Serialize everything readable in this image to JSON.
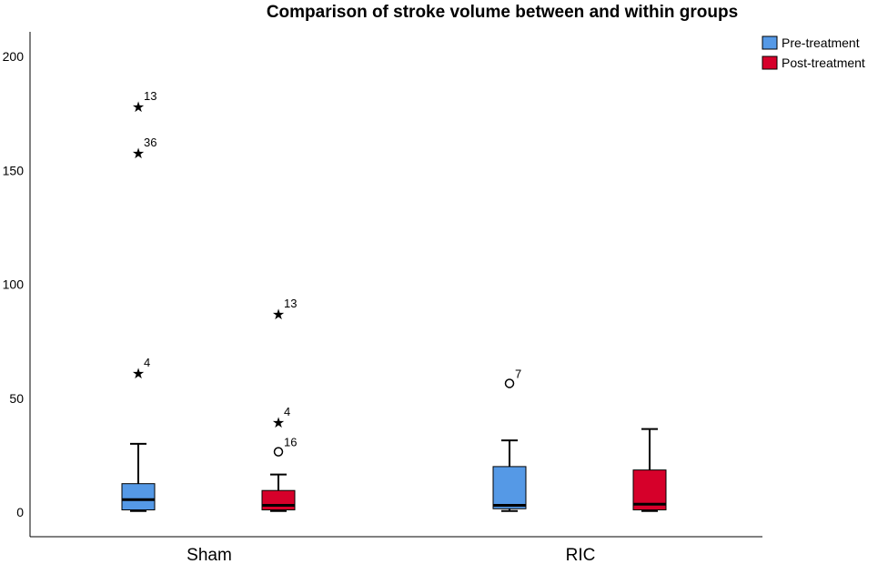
{
  "chart_data": {
    "type": "boxplot",
    "title": "Comparison of stroke volume between and within groups",
    "xlabel": "",
    "ylabel": "",
    "ylim": [
      -10,
      212
    ],
    "yticks": [
      0,
      50,
      100,
      150,
      200
    ],
    "categories": [
      "Sham",
      "RIC"
    ],
    "legend": {
      "position": "top-right"
    },
    "grid": false,
    "series": [
      {
        "name": "Pre-treatment",
        "color": "#5599E6",
        "boxes": [
          {
            "category": "Sham",
            "min": 0.5,
            "q1": 1.0,
            "median": 5.5,
            "q3": 12.5,
            "max": 30,
            "outliers": [
              {
                "value": 178.5,
                "label": "13",
                "marker": "star"
              },
              {
                "value": 158,
                "label": "36",
                "marker": "star"
              },
              {
                "value": 61.5,
                "label": "4",
                "marker": "star"
              }
            ]
          },
          {
            "category": "RIC",
            "min": 0.5,
            "q1": 1.5,
            "median": 3.0,
            "q3": 20,
            "max": 31.5,
            "outliers": [
              {
                "value": 56.5,
                "label": "7",
                "marker": "circle"
              }
            ]
          }
        ]
      },
      {
        "name": "Post-treatment",
        "color": "#D6002A",
        "boxes": [
          {
            "category": "Sham",
            "min": 0.5,
            "q1": 1.0,
            "median": 3.0,
            "q3": 9.5,
            "max": 16.5,
            "outliers": [
              {
                "value": 87.5,
                "label": "13",
                "marker": "star"
              },
              {
                "value": 40,
                "label": "4",
                "marker": "star"
              },
              {
                "value": 26.5,
                "label": "16",
                "marker": "circle"
              }
            ]
          },
          {
            "category": "RIC",
            "min": 0.5,
            "q1": 1.0,
            "median": 3.5,
            "q3": 18.5,
            "max": 36.5,
            "outliers": []
          }
        ]
      }
    ]
  }
}
